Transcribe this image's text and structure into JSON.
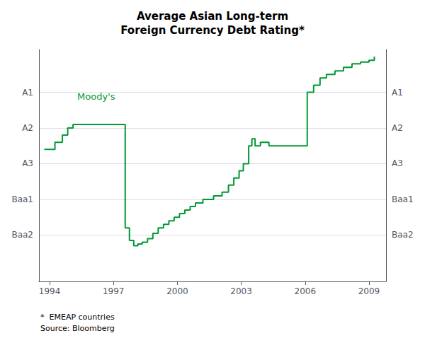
{
  "chart_data": {
    "type": "step",
    "title": "Average Asian Long-term\nForeign Currency Debt Rating*",
    "footnotes": [
      "*  EMEAP countries",
      "Source: Bloomberg"
    ],
    "annotations": [
      {
        "text": "Moody's",
        "x": 1995.3,
        "y": 4.75
      }
    ],
    "color": "#009933",
    "x": [
      1993.75,
      1994.25,
      1994.6,
      1994.85,
      1995.1,
      1995.5,
      1996.1,
      1996.6,
      1997.1,
      1997.55,
      1997.75,
      1997.95,
      1998.15,
      1998.35,
      1998.6,
      1998.85,
      1999.1,
      1999.35,
      1999.6,
      1999.85,
      2000.1,
      2000.35,
      2000.6,
      2000.85,
      2001.2,
      2001.7,
      2002.1,
      2002.4,
      2002.65,
      2002.9,
      2003.1,
      2003.35,
      2003.5,
      2003.65,
      2003.9,
      2004.3,
      2004.7,
      2005.1,
      2005.5,
      2005.75,
      2006.1,
      2006.4,
      2006.7,
      2007.0,
      2007.4,
      2007.8,
      2008.2,
      2008.6,
      2009.0,
      2009.25
    ],
    "values": [
      3.4,
      3.6,
      3.8,
      4.0,
      4.1,
      4.1,
      4.1,
      4.1,
      4.1,
      1.2,
      0.85,
      0.7,
      0.75,
      0.8,
      0.9,
      1.05,
      1.2,
      1.3,
      1.4,
      1.5,
      1.6,
      1.7,
      1.8,
      1.9,
      2.0,
      2.1,
      2.2,
      2.4,
      2.6,
      2.8,
      3.0,
      3.5,
      3.7,
      3.5,
      3.6,
      3.5,
      3.5,
      3.5,
      3.5,
      3.5,
      5.0,
      5.2,
      5.4,
      5.5,
      5.6,
      5.7,
      5.8,
      5.85,
      5.9,
      6.0
    ],
    "xlim": [
      1993.5,
      2009.8
    ],
    "xticks": [
      1994,
      1997,
      2000,
      2003,
      2006,
      2009
    ],
    "ylim": [
      -0.3,
      6.2
    ],
    "yticks": [
      {
        "value": 5,
        "label": "A1"
      },
      {
        "value": 4,
        "label": "A2"
      },
      {
        "value": 3,
        "label": "A3"
      },
      {
        "value": 2,
        "label": "Baa1"
      },
      {
        "value": 1,
        "label": "Baa2"
      }
    ],
    "y2lim": [
      -0.3,
      6.2
    ],
    "y2ticks": [
      {
        "value": 5,
        "label": "A1"
      },
      {
        "value": 4,
        "label": "A2"
      },
      {
        "value": 3,
        "label": "A3"
      },
      {
        "value": 2,
        "label": "Baa1"
      },
      {
        "value": 1,
        "label": "Baa2"
      }
    ],
    "grid": true
  }
}
